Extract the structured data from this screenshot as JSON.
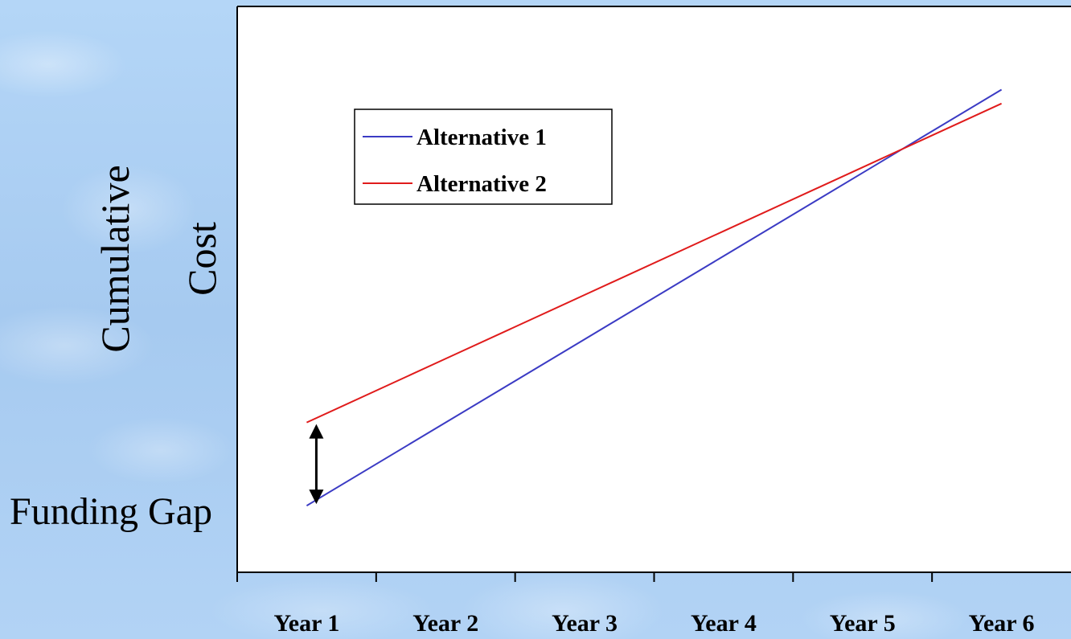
{
  "chart_data": {
    "type": "line",
    "title": "",
    "ylabel_lines": [
      "Cumulative",
      "Cost"
    ],
    "xlabel": "",
    "categories": [
      "Year 1",
      "Year 2",
      "Year 3",
      "Year 4",
      "Year 5",
      "Year 6"
    ],
    "series": [
      {
        "name": "Alternative 1",
        "color": "#3b3bc4",
        "values": [
          10,
          25,
          40,
          55,
          70,
          85
        ]
      },
      {
        "name": "Alternative 2",
        "color": "#e01b1b",
        "values": [
          25,
          36.5,
          48,
          59.5,
          71,
          82.5
        ]
      }
    ],
    "ylim": [
      -2,
      100
    ],
    "y_ticks_visible": false,
    "grid": false,
    "legend": {
      "position": "top-left",
      "entries": [
        "Alternative 1",
        "Alternative 2"
      ]
    },
    "annotations": [
      {
        "text": "Funding Gap",
        "at_category": "Year 1",
        "type": "double-arrow"
      }
    ]
  }
}
